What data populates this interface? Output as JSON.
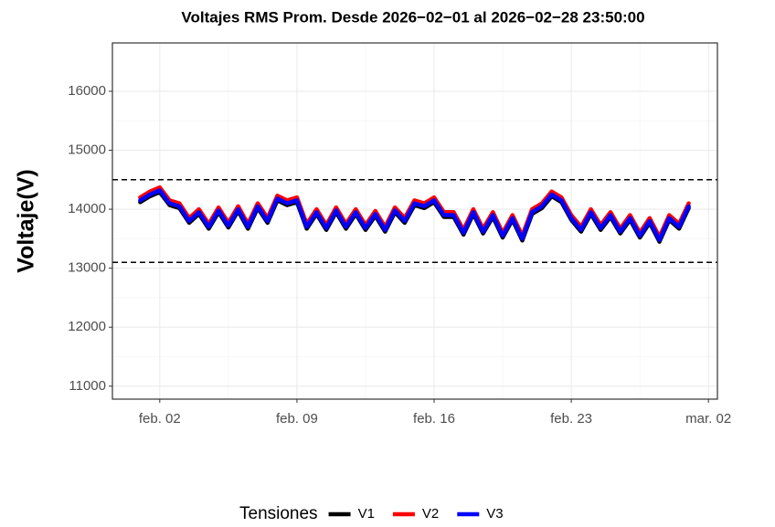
{
  "chart_data": {
    "type": "line",
    "title": "Voltajes RMS Prom. Desde  2026−02−01  al  2026−02−28 23:50:00",
    "y_label": "Voltaje(V)",
    "legend_title": "Tensiones",
    "legend_position": "bottom",
    "grid": true,
    "x": [
      "2026-02-01T00:00",
      "2026-02-01T12:00",
      "2026-02-02T00:00",
      "2026-02-02T12:00",
      "2026-02-03T00:00",
      "2026-02-03T12:00",
      "2026-02-04T00:00",
      "2026-02-04T12:00",
      "2026-02-05T00:00",
      "2026-02-05T12:00",
      "2026-02-06T00:00",
      "2026-02-06T12:00",
      "2026-02-07T00:00",
      "2026-02-07T12:00",
      "2026-02-08T00:00",
      "2026-02-08T12:00",
      "2026-02-09T00:00",
      "2026-02-09T12:00",
      "2026-02-10T00:00",
      "2026-02-10T12:00",
      "2026-02-11T00:00",
      "2026-02-11T12:00",
      "2026-02-12T00:00",
      "2026-02-12T12:00",
      "2026-02-13T00:00",
      "2026-02-13T12:00",
      "2026-02-14T00:00",
      "2026-02-14T12:00",
      "2026-02-15T00:00",
      "2026-02-15T12:00",
      "2026-02-16T00:00",
      "2026-02-16T12:00",
      "2026-02-17T00:00",
      "2026-02-17T12:00",
      "2026-02-18T00:00",
      "2026-02-18T12:00",
      "2026-02-19T00:00",
      "2026-02-19T12:00",
      "2026-02-20T00:00",
      "2026-02-20T12:00",
      "2026-02-21T00:00",
      "2026-02-21T12:00",
      "2026-02-22T00:00",
      "2026-02-22T12:00",
      "2026-02-23T00:00",
      "2026-02-23T12:00",
      "2026-02-24T00:00",
      "2026-02-24T12:00",
      "2026-02-25T00:00",
      "2026-02-25T12:00",
      "2026-02-26T00:00",
      "2026-02-26T12:00",
      "2026-02-27T00:00",
      "2026-02-27T12:00",
      "2026-02-28T00:00",
      "2026-02-28T12:00",
      "2026-02-28T23:50"
    ],
    "series": [
      {
        "name": "V1",
        "color": "#000000",
        "values": [
          14120,
          14220,
          14290,
          14070,
          14020,
          13770,
          13920,
          13670,
          13950,
          13690,
          13970,
          13670,
          14020,
          13770,
          14150,
          14070,
          14120,
          13670,
          13920,
          13650,
          13950,
          13670,
          13920,
          13650,
          13890,
          13620,
          13950,
          13770,
          14070,
          14020,
          14120,
          13870,
          13870,
          13570,
          13920,
          13590,
          13870,
          13520,
          13820,
          13470,
          13920,
          14020,
          14220,
          14120,
          13820,
          13620,
          13920,
          13650,
          13870,
          13590,
          13820,
          13520,
          13770,
          13450,
          13820,
          13670,
          14020
        ]
      },
      {
        "name": "V2",
        "color": "#ff0000",
        "values": [
          14200,
          14300,
          14370,
          14150,
          14100,
          13850,
          14000,
          13750,
          14030,
          13770,
          14050,
          13750,
          14100,
          13850,
          14230,
          14150,
          14200,
          13750,
          14000,
          13730,
          14030,
          13750,
          14000,
          13730,
          13970,
          13700,
          14030,
          13850,
          14150,
          14100,
          14200,
          13950,
          13950,
          13650,
          14000,
          13670,
          13950,
          13600,
          13900,
          13550,
          14000,
          14100,
          14300,
          14200,
          13900,
          13700,
          14000,
          13730,
          13950,
          13670,
          13900,
          13600,
          13850,
          13530,
          13900,
          13750,
          14100
        ]
      },
      {
        "name": "V3",
        "color": "#0000ff",
        "values": [
          14150,
          14250,
          14320,
          14100,
          14050,
          13800,
          13950,
          13700,
          13980,
          13720,
          14000,
          13700,
          14050,
          13800,
          14180,
          14100,
          14150,
          13700,
          13950,
          13680,
          13980,
          13700,
          13950,
          13680,
          13920,
          13650,
          13980,
          13800,
          14100,
          14050,
          14150,
          13900,
          13900,
          13600,
          13950,
          13620,
          13900,
          13550,
          13850,
          13500,
          13950,
          14050,
          14250,
          14150,
          13850,
          13650,
          13950,
          13680,
          13900,
          13620,
          13850,
          13550,
          13800,
          13480,
          13850,
          13700,
          14050
        ]
      }
    ],
    "hlines": [
      14500,
      13100
    ],
    "xlim": [
      "2026-01-30T14:00",
      "2026-03-02T11:00"
    ],
    "xticks": [
      {
        "value": "2026-02-02T00:00",
        "label": "feb. 02"
      },
      {
        "value": "2026-02-09T00:00",
        "label": "feb. 09"
      },
      {
        "value": "2026-02-16T00:00",
        "label": "feb. 16"
      },
      {
        "value": "2026-02-23T00:00",
        "label": "feb. 23"
      },
      {
        "value": "2026-03-02T00:00",
        "label": "mar. 02"
      }
    ],
    "ylim": [
      10780,
      16820
    ],
    "yticks": [
      11000,
      12000,
      13000,
      14000,
      15000,
      16000
    ]
  }
}
